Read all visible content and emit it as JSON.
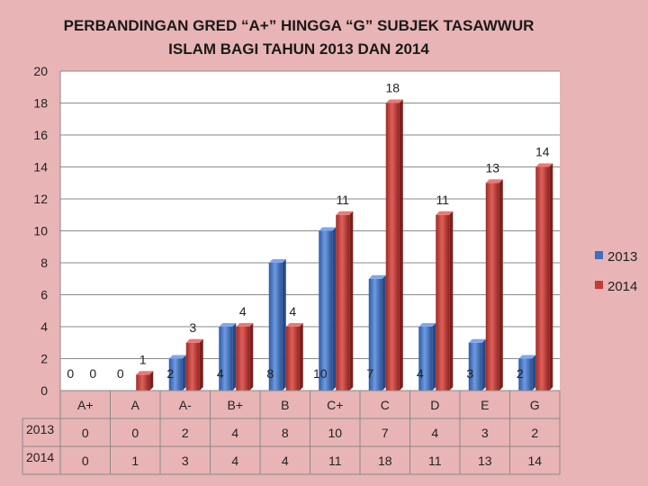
{
  "chart_data": {
    "type": "bar",
    "title_lines": [
      "PERBANDINGAN GRED “A+” HINGGA “G” SUBJEK TASAWWUR",
      "ISLAM BAGI TAHUN 2013 DAN 2014"
    ],
    "categories": [
      "A+",
      "A",
      "A-",
      "B+",
      "B",
      "C+",
      "C",
      "D",
      "E",
      "G"
    ],
    "series": [
      {
        "name": "2013",
        "values": [
          0,
          0,
          2,
          4,
          8,
          10,
          7,
          4,
          3,
          2
        ],
        "color": "#3a6fc4"
      },
      {
        "name": "2014",
        "values": [
          0,
          1,
          3,
          4,
          4,
          11,
          18,
          11,
          13,
          14
        ],
        "color": "#c23b36"
      }
    ],
    "ylim": [
      0,
      20
    ],
    "yticks": [
      0,
      2,
      4,
      6,
      8,
      10,
      12,
      14,
      16,
      18,
      20
    ],
    "grid": true,
    "legend_position": "right",
    "data_table": true
  }
}
